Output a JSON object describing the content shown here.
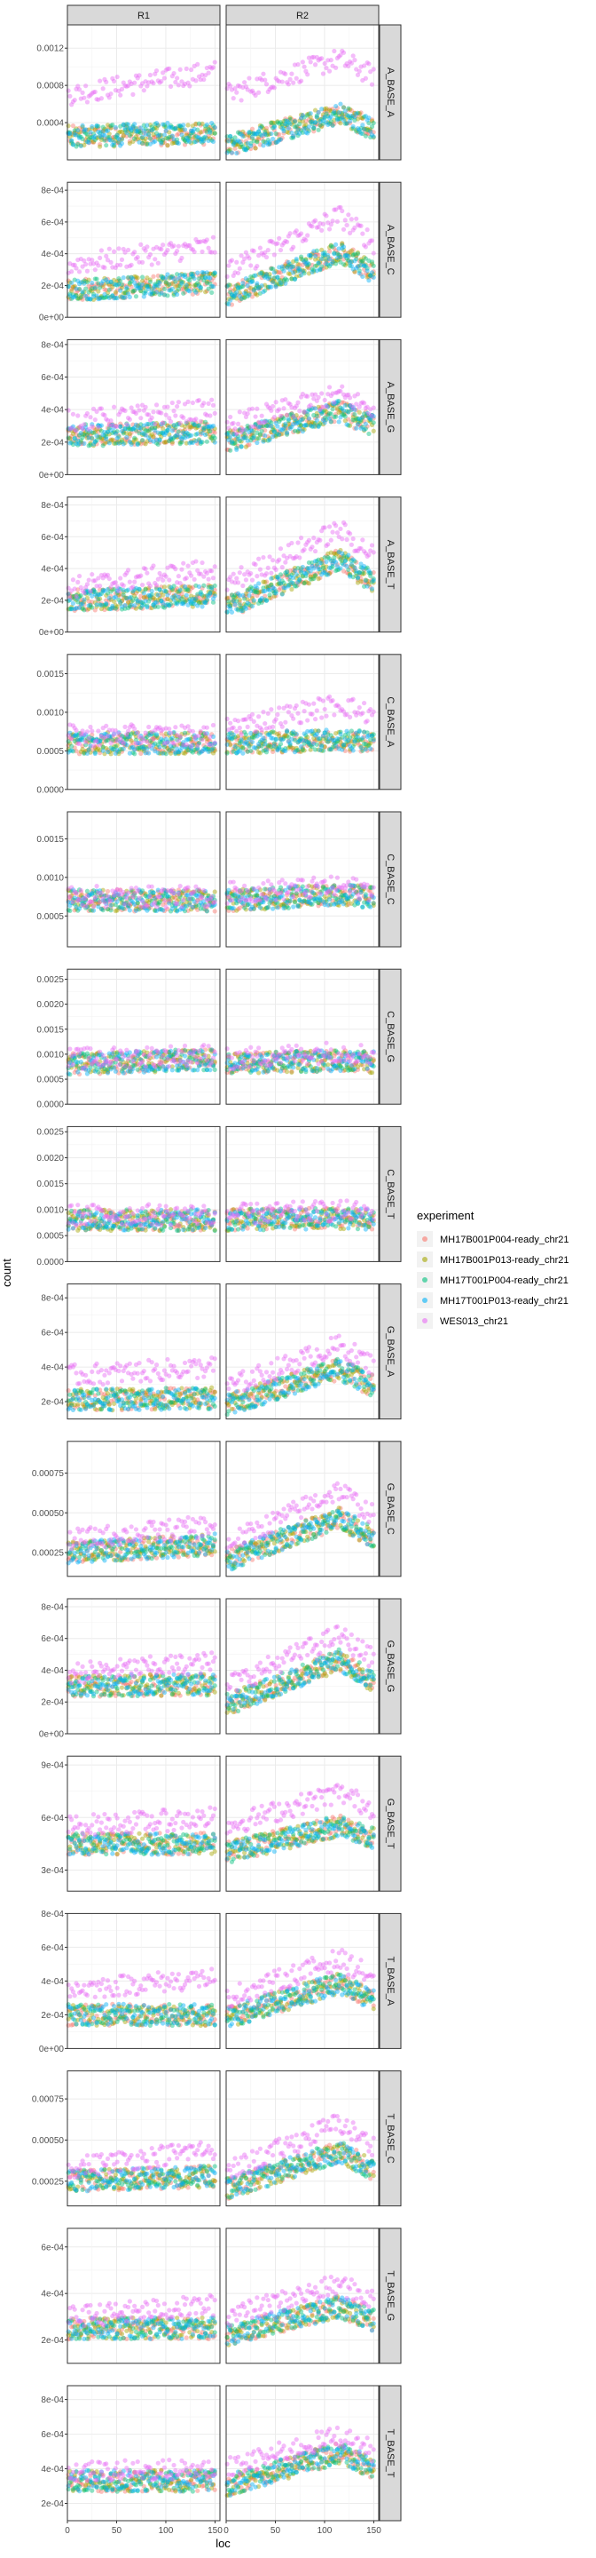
{
  "chart_data": {
    "type": "scatter",
    "title": "",
    "xlabel": "loc",
    "ylabel": "count",
    "xlim": [
      0,
      155
    ],
    "x_ticks": [
      0,
      50,
      100,
      150
    ],
    "columns": [
      "R1",
      "R2"
    ],
    "rows": [
      {
        "label": "A_BASE_A",
        "ylim": [
          0,
          0.00145
        ],
        "y_ticks": [
          "0.0004",
          "0.0008",
          "0.0012"
        ],
        "y_tick_values": [
          0.0004,
          0.0008,
          0.0012
        ],
        "y_min_shown": 0.0001
      },
      {
        "label": "A_BASE_C",
        "ylim": [
          0,
          0.00085
        ],
        "y_ticks": [
          "0e+00",
          "2e-04",
          "4e-04",
          "6e-04",
          "8e-04"
        ],
        "y_tick_values": [
          0,
          0.0002,
          0.0004,
          0.0006,
          0.0008
        ]
      },
      {
        "label": "A_BASE_G",
        "ylim": [
          0,
          0.00083
        ],
        "y_ticks": [
          "0e+00",
          "2e-04",
          "4e-04",
          "6e-04",
          "8e-04"
        ],
        "y_tick_values": [
          0,
          0.0002,
          0.0004,
          0.0006,
          0.0008
        ]
      },
      {
        "label": "A_BASE_T",
        "ylim": [
          0,
          0.00085
        ],
        "y_ticks": [
          "0e+00",
          "2e-04",
          "4e-04",
          "6e-04",
          "8e-04"
        ],
        "y_tick_values": [
          0,
          0.0002,
          0.0004,
          0.0006,
          0.0008
        ]
      },
      {
        "label": "C_BASE_A",
        "ylim": [
          0,
          0.00175
        ],
        "y_ticks": [
          "0.0000",
          "0.0005",
          "0.0010",
          "0.0015"
        ],
        "y_tick_values": [
          0,
          0.0005,
          0.001,
          0.0015
        ]
      },
      {
        "label": "C_BASE_C",
        "ylim": [
          0.0001,
          0.00185
        ],
        "y_ticks": [
          "0.0005",
          "0.0010",
          "0.0015"
        ],
        "y_tick_values": [
          0.0005,
          0.001,
          0.0015
        ]
      },
      {
        "label": "C_BASE_G",
        "ylim": [
          0,
          0.0027
        ],
        "y_ticks": [
          "0.0000",
          "0.0005",
          "0.0010",
          "0.0015",
          "0.0020",
          "0.0025"
        ],
        "y_tick_values": [
          0,
          0.0005,
          0.001,
          0.0015,
          0.002,
          0.0025
        ]
      },
      {
        "label": "C_BASE_T",
        "ylim": [
          0,
          0.0026
        ],
        "y_ticks": [
          "0.0000",
          "0.0005",
          "0.0010",
          "0.0015",
          "0.0020",
          "0.0025"
        ],
        "y_tick_values": [
          0,
          0.0005,
          0.001,
          0.0015,
          0.002,
          0.0025
        ]
      },
      {
        "label": "G_BASE_A",
        "ylim": [
          0.0001,
          0.00088
        ],
        "y_ticks": [
          "2e-04",
          "4e-04",
          "6e-04",
          "8e-04"
        ],
        "y_tick_values": [
          0.0002,
          0.0004,
          0.0006,
          0.0008
        ]
      },
      {
        "label": "G_BASE_C",
        "ylim": [
          0.0001,
          0.00095
        ],
        "y_ticks": [
          "0.00025",
          "0.00050",
          "0.00075"
        ],
        "y_tick_values": [
          0.00025,
          0.0005,
          0.00075
        ]
      },
      {
        "label": "G_BASE_G",
        "ylim": [
          0,
          0.00085
        ],
        "y_ticks": [
          "0e+00",
          "2e-04",
          "4e-04",
          "6e-04",
          "8e-04"
        ],
        "y_tick_values": [
          0,
          0.0002,
          0.0004,
          0.0006,
          0.0008
        ]
      },
      {
        "label": "G_BASE_T",
        "ylim": [
          0.00018,
          0.00095
        ],
        "y_ticks": [
          "3e-04",
          "6e-04",
          "9e-04"
        ],
        "y_tick_values": [
          0.0003,
          0.0006,
          0.0009
        ]
      },
      {
        "label": "T_BASE_A",
        "ylim": [
          0,
          0.0008
        ],
        "y_ticks": [
          "0e+00",
          "2e-04",
          "4e-04",
          "6e-04",
          "8e-04"
        ],
        "y_tick_values": [
          0,
          0.0002,
          0.0004,
          0.0006,
          0.0008
        ]
      },
      {
        "label": "T_BASE_C",
        "ylim": [
          0.0001,
          0.00092
        ],
        "y_ticks": [
          "0.00025",
          "0.00050",
          "0.00075"
        ],
        "y_tick_values": [
          0.00025,
          0.0005,
          0.00075
        ]
      },
      {
        "label": "T_BASE_G",
        "ylim": [
          0.0001,
          0.00068
        ],
        "y_ticks": [
          "2e-04",
          "4e-04",
          "6e-04"
        ],
        "y_tick_values": [
          0.0002,
          0.0004,
          0.0006
        ]
      },
      {
        "label": "T_BASE_T",
        "ylim": [
          0.0001,
          0.00088
        ],
        "y_ticks": [
          "2e-04",
          "4e-04",
          "6e-04",
          "8e-04"
        ],
        "y_tick_values": [
          0.0002,
          0.0004,
          0.0006,
          0.0008
        ]
      }
    ],
    "legend": {
      "title": "experiment",
      "position": "right",
      "entries": [
        {
          "name": "MH17B001P004-ready_chr21",
          "color": "#F8766D"
        },
        {
          "name": "MH17B001P013-ready_chr21",
          "color": "#A3A500"
        },
        {
          "name": "MH17T001P004-ready_chr21",
          "color": "#00BF7D"
        },
        {
          "name": "MH17T001P013-ready_chr21",
          "color": "#00B0F6"
        },
        {
          "name": "WES013_chr21",
          "color": "#E76BF3"
        }
      ]
    },
    "series_levels": {
      "R1": {
        "A_BASE_A": [
          [
            0.00025,
            0.00028
          ],
          [
            0.00025,
            0.00028
          ],
          [
            0.00025,
            0.0003
          ],
          [
            0.00025,
            0.0003
          ],
          [
            0.0007,
            0.00095
          ]
        ],
        "A_BASE_C": [
          [
            0.00017,
            0.00022
          ],
          [
            0.00017,
            0.00022
          ],
          [
            0.00017,
            0.00022
          ],
          [
            0.00017,
            0.00022
          ],
          [
            0.00033,
            0.00045
          ]
        ],
        "A_BASE_G": [
          [
            0.00024,
            0.00026
          ],
          [
            0.00024,
            0.00026
          ],
          [
            0.00024,
            0.00026
          ],
          [
            0.00024,
            0.00026
          ],
          [
            0.00033,
            0.0004
          ]
        ],
        "A_BASE_T": [
          [
            0.0002,
            0.00023
          ],
          [
            0.0002,
            0.00023
          ],
          [
            0.0002,
            0.00023
          ],
          [
            0.0002,
            0.00023
          ],
          [
            0.00028,
            0.0004
          ]
        ],
        "C_BASE_A": [
          [
            0.0006,
            0.0006
          ],
          [
            0.0006,
            0.0006
          ],
          [
            0.0006,
            0.0006
          ],
          [
            0.0006,
            0.0006
          ],
          [
            0.0007,
            0.0007
          ]
        ],
        "C_BASE_C": [
          [
            0.0007,
            0.0007
          ],
          [
            0.0007,
            0.0007
          ],
          [
            0.0007,
            0.0007
          ],
          [
            0.0007,
            0.0007
          ],
          [
            0.00075,
            0.00075
          ]
        ],
        "C_BASE_G": [
          [
            0.0008,
            0.0009
          ],
          [
            0.0008,
            0.0009
          ],
          [
            0.0008,
            0.0009
          ],
          [
            0.0008,
            0.0009
          ],
          [
            0.0009,
            0.001
          ]
        ],
        "C_BASE_T": [
          [
            0.0008,
            0.0008
          ],
          [
            0.0008,
            0.0008
          ],
          [
            0.0008,
            0.0008
          ],
          [
            0.0008,
            0.0008
          ],
          [
            0.0009,
            0.0009
          ]
        ],
        "G_BASE_A": [
          [
            0.00021,
            0.00022
          ],
          [
            0.00021,
            0.00022
          ],
          [
            0.00021,
            0.00022
          ],
          [
            0.00021,
            0.00022
          ],
          [
            0.00035,
            0.0004
          ]
        ],
        "G_BASE_C": [
          [
            0.00025,
            0.0003
          ],
          [
            0.00025,
            0.0003
          ],
          [
            0.00025,
            0.0003
          ],
          [
            0.00025,
            0.0003
          ],
          [
            0.00033,
            0.00042
          ]
        ],
        "G_BASE_G": [
          [
            0.0003,
            0.00031
          ],
          [
            0.0003,
            0.00031
          ],
          [
            0.0003,
            0.00031
          ],
          [
            0.0003,
            0.00031
          ],
          [
            0.00038,
            0.00045
          ]
        ],
        "G_BASE_T": [
          [
            0.00045,
            0.00045
          ],
          [
            0.00045,
            0.00045
          ],
          [
            0.00045,
            0.00045
          ],
          [
            0.00045,
            0.00045
          ],
          [
            0.00055,
            0.0006
          ]
        ],
        "T_BASE_A": [
          [
            0.0002,
            0.0002
          ],
          [
            0.0002,
            0.0002
          ],
          [
            0.0002,
            0.0002
          ],
          [
            0.0002,
            0.0002
          ],
          [
            0.00035,
            0.00042
          ]
        ],
        "T_BASE_C": [
          [
            0.00025,
            0.00028
          ],
          [
            0.00025,
            0.00028
          ],
          [
            0.00025,
            0.00028
          ],
          [
            0.00025,
            0.00028
          ],
          [
            0.00033,
            0.00045
          ]
        ],
        "T_BASE_G": [
          [
            0.00025,
            0.00025
          ],
          [
            0.00025,
            0.00025
          ],
          [
            0.00025,
            0.00025
          ],
          [
            0.00025,
            0.00025
          ],
          [
            0.0003,
            0.00035
          ]
        ],
        "T_BASE_T": [
          [
            0.00033,
            0.00033
          ],
          [
            0.00033,
            0.00033
          ],
          [
            0.00033,
            0.00033
          ],
          [
            0.00033,
            0.00033
          ],
          [
            0.00038,
            0.0004
          ]
        ]
      },
      "R2": {
        "A_BASE_A": [
          [
            0.00015,
            0.0006
          ],
          [
            0.00015,
            0.0006
          ],
          [
            0.00015,
            0.0006
          ],
          [
            0.00015,
            0.0006
          ],
          [
            0.0007,
            0.0012
          ]
        ],
        "A_BASE_C": [
          [
            0.00013,
            0.0005
          ],
          [
            0.00013,
            0.0005
          ],
          [
            0.00013,
            0.0005
          ],
          [
            0.00013,
            0.0005
          ],
          [
            0.00028,
            0.00075
          ]
        ],
        "A_BASE_G": [
          [
            0.0002,
            0.00045
          ],
          [
            0.0002,
            0.00045
          ],
          [
            0.0002,
            0.00045
          ],
          [
            0.0002,
            0.00045
          ],
          [
            0.0003,
            0.00055
          ]
        ],
        "A_BASE_T": [
          [
            0.00015,
            0.00055
          ],
          [
            0.00015,
            0.00055
          ],
          [
            0.00015,
            0.00055
          ],
          [
            0.00015,
            0.00055
          ],
          [
            0.0003,
            0.00075
          ]
        ],
        "C_BASE_A": [
          [
            0.0006,
            0.00065
          ],
          [
            0.0006,
            0.00065
          ],
          [
            0.0006,
            0.00065
          ],
          [
            0.0006,
            0.00065
          ],
          [
            0.0008,
            0.0012
          ]
        ],
        "C_BASE_C": [
          [
            0.0007,
            0.0008
          ],
          [
            0.0007,
            0.0008
          ],
          [
            0.0007,
            0.0008
          ],
          [
            0.0007,
            0.0008
          ],
          [
            0.0008,
            0.0009
          ]
        ],
        "C_BASE_G": [
          [
            0.0008,
            0.0009
          ],
          [
            0.0008,
            0.0009
          ],
          [
            0.0008,
            0.0009
          ],
          [
            0.0008,
            0.0009
          ],
          [
            0.0009,
            0.0011
          ]
        ],
        "C_BASE_T": [
          [
            0.0008,
            0.00085
          ],
          [
            0.0008,
            0.00085
          ],
          [
            0.0008,
            0.00085
          ],
          [
            0.0008,
            0.00085
          ],
          [
            0.0009,
            0.001
          ]
        ],
        "G_BASE_A": [
          [
            0.00018,
            0.00045
          ],
          [
            0.00018,
            0.00045
          ],
          [
            0.00018,
            0.00045
          ],
          [
            0.00018,
            0.00045
          ],
          [
            0.00028,
            0.0006
          ]
        ],
        "G_BASE_C": [
          [
            0.0002,
            0.00055
          ],
          [
            0.0002,
            0.00055
          ],
          [
            0.0002,
            0.00055
          ],
          [
            0.0002,
            0.00055
          ],
          [
            0.0003,
            0.00075
          ]
        ],
        "G_BASE_G": [
          [
            0.00018,
            0.00055
          ],
          [
            0.00018,
            0.00055
          ],
          [
            0.00018,
            0.00055
          ],
          [
            0.00018,
            0.00055
          ],
          [
            0.0003,
            0.00072
          ]
        ],
        "G_BASE_T": [
          [
            0.0004,
            0.0006
          ],
          [
            0.0004,
            0.0006
          ],
          [
            0.0004,
            0.0006
          ],
          [
            0.0004,
            0.0006
          ],
          [
            0.00055,
            0.0008
          ]
        ],
        "T_BASE_A": [
          [
            0.00018,
            0.00045
          ],
          [
            0.00018,
            0.00045
          ],
          [
            0.00018,
            0.00045
          ],
          [
            0.00018,
            0.00045
          ],
          [
            0.0003,
            0.0006
          ]
        ],
        "T_BASE_C": [
          [
            0.0002,
            0.0005
          ],
          [
            0.0002,
            0.0005
          ],
          [
            0.0002,
            0.0005
          ],
          [
            0.0002,
            0.0005
          ],
          [
            0.0003,
            0.0007
          ]
        ],
        "T_BASE_G": [
          [
            0.00022,
            0.00038
          ],
          [
            0.00022,
            0.00038
          ],
          [
            0.00022,
            0.00038
          ],
          [
            0.00022,
            0.00038
          ],
          [
            0.0003,
            0.00048
          ]
        ],
        "T_BASE_T": [
          [
            0.0003,
            0.00055
          ],
          [
            0.0003,
            0.00055
          ],
          [
            0.0003,
            0.00055
          ],
          [
            0.0003,
            0.00055
          ],
          [
            0.0004,
            0.00065
          ]
        ]
      }
    }
  }
}
